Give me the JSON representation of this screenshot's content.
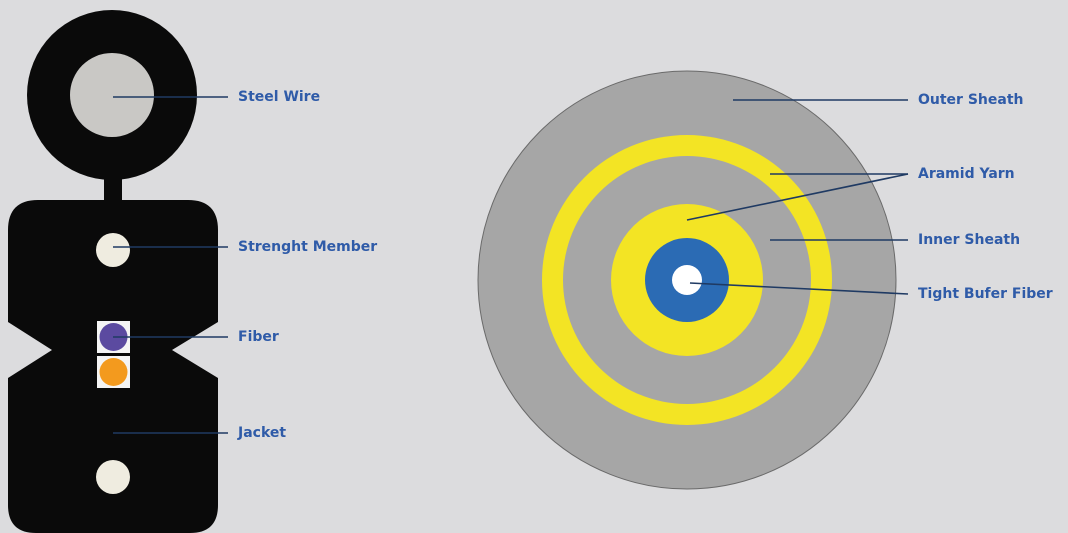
{
  "left_cable": {
    "labels": [
      "Steel Wire",
      "Strenght Member",
      "Fiber",
      "Jacket"
    ]
  },
  "right_cable": {
    "labels": [
      "Outer Sheath",
      "Aramid Yarn",
      "Inner Sheath",
      "Tight Bufer Fiber"
    ]
  }
}
